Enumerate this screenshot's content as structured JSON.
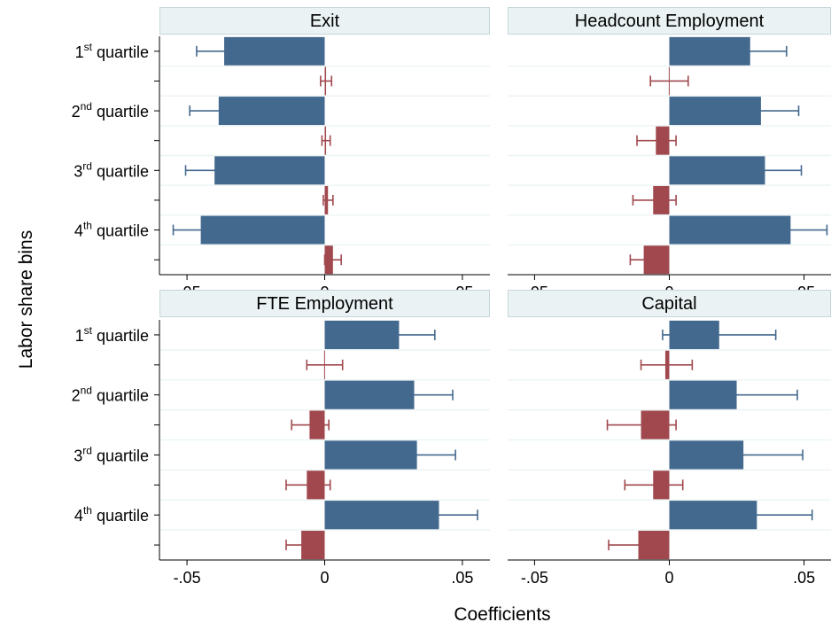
{
  "chart_data": {
    "type": "bar",
    "orientation": "horizontal",
    "xlabel": "Coefficients",
    "ylabel": "Labor share bins",
    "xlim": [
      -0.06,
      0.06
    ],
    "x_ticks": [
      -0.05,
      0,
      0.05
    ],
    "x_tick_labels": [
      "-.05",
      "0",
      ".05"
    ],
    "grid": true,
    "categories": [
      {
        "num": "1",
        "sup": "st",
        "rest": " quartile"
      },
      {
        "num": "2",
        "sup": "nd",
        "rest": " quartile"
      },
      {
        "num": "3",
        "sup": "rd",
        "rest": " quartile"
      },
      {
        "num": "4",
        "sup": "th",
        "rest": " quartile"
      }
    ],
    "colors": {
      "series_1": "#44698e",
      "series_2": "#a0484e",
      "strip_bg": "#eaf2f3",
      "strip_border": "#c5d7d9",
      "grid": "#eaf2f3"
    },
    "panels": [
      {
        "title": "Exit",
        "series_1": [
          {
            "value": -0.0365,
            "ci": [
              -0.0465,
              -0.0275
            ]
          },
          {
            "value": -0.0385,
            "ci": [
              -0.049,
              -0.0285
            ]
          },
          {
            "value": -0.04,
            "ci": [
              -0.0505,
              -0.0295
            ]
          },
          {
            "value": -0.045,
            "ci": [
              -0.055,
              -0.0355
            ]
          }
        ],
        "series_2": [
          {
            "value": 0.0005,
            "ci": [
              -0.0015,
              0.0025
            ]
          },
          {
            "value": 0.0005,
            "ci": [
              -0.001,
              0.002
            ]
          },
          {
            "value": 0.0012,
            "ci": [
              -0.0005,
              0.003
            ]
          },
          {
            "value": 0.003,
            "ci": [
              -0.0,
              0.006
            ]
          }
        ]
      },
      {
        "title": "Headcount Employment",
        "series_1": [
          {
            "value": 0.03,
            "ci": [
              0.0165,
              0.0435
            ]
          },
          {
            "value": 0.034,
            "ci": [
              0.0205,
              0.048
            ]
          },
          {
            "value": 0.0355,
            "ci": [
              0.022,
              0.049
            ]
          },
          {
            "value": 0.045,
            "ci": [
              0.031,
              0.0585
            ]
          }
        ],
        "series_2": [
          {
            "value": -0.0002,
            "ci": [
              -0.007,
              0.007
            ]
          },
          {
            "value": -0.005,
            "ci": [
              -0.012,
              0.0025
            ]
          },
          {
            "value": -0.006,
            "ci": [
              -0.0135,
              0.0025
            ]
          },
          {
            "value": -0.0095,
            "ci": [
              -0.0145,
              -0.004
            ]
          }
        ]
      },
      {
        "title": "FTE Employment",
        "series_1": [
          {
            "value": 0.027,
            "ci": [
              0.0135,
              0.04
            ]
          },
          {
            "value": 0.0325,
            "ci": [
              0.019,
              0.0465
            ]
          },
          {
            "value": 0.0335,
            "ci": [
              0.0195,
              0.0475
            ]
          },
          {
            "value": 0.0415,
            "ci": [
              0.028,
              0.0555
            ]
          }
        ],
        "series_2": [
          {
            "value": -0.0002,
            "ci": [
              -0.0065,
              0.0065
            ]
          },
          {
            "value": -0.0055,
            "ci": [
              -0.012,
              0.0015
            ]
          },
          {
            "value": -0.0065,
            "ci": [
              -0.014,
              0.002
            ]
          },
          {
            "value": -0.0085,
            "ci": [
              -0.014,
              -0.003
            ]
          }
        ]
      },
      {
        "title": "Capital",
        "series_1": [
          {
            "value": 0.0185,
            "ci": [
              -0.0025,
              0.0395
            ]
          },
          {
            "value": 0.025,
            "ci": [
              0.0025,
              0.0475
            ]
          },
          {
            "value": 0.0275,
            "ci": [
              0.005,
              0.0495
            ]
          },
          {
            "value": 0.0325,
            "ci": [
              0.0115,
              0.053
            ]
          }
        ],
        "series_2": [
          {
            "value": -0.0015,
            "ci": [
              -0.0105,
              0.0085
            ]
          },
          {
            "value": -0.0105,
            "ci": [
              -0.023,
              0.0025
            ]
          },
          {
            "value": -0.006,
            "ci": [
              -0.0165,
              0.005
            ]
          },
          {
            "value": -0.0115,
            "ci": [
              -0.0225,
              -0.0005
            ]
          }
        ]
      }
    ]
  }
}
